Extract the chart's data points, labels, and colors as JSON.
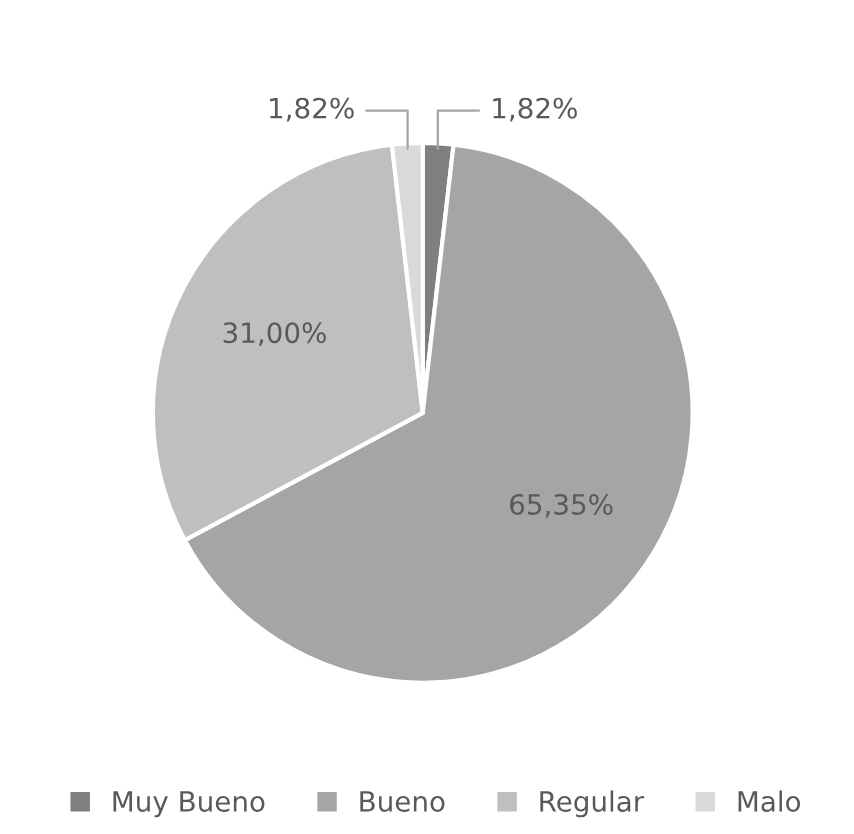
{
  "chart_data": {
    "type": "pie",
    "categories": [
      "Muy Bueno",
      "Bueno",
      "Regular",
      "Malo"
    ],
    "values": [
      1.82,
      65.35,
      31.0,
      1.82
    ],
    "colors": [
      "#7f7f7f",
      "#a5a5a5",
      "#bfbfbf",
      "#d9d9d9"
    ],
    "value_labels": [
      "1,82%",
      "65,35%",
      "31,00%",
      "1,82%"
    ],
    "legend": "bottom"
  }
}
